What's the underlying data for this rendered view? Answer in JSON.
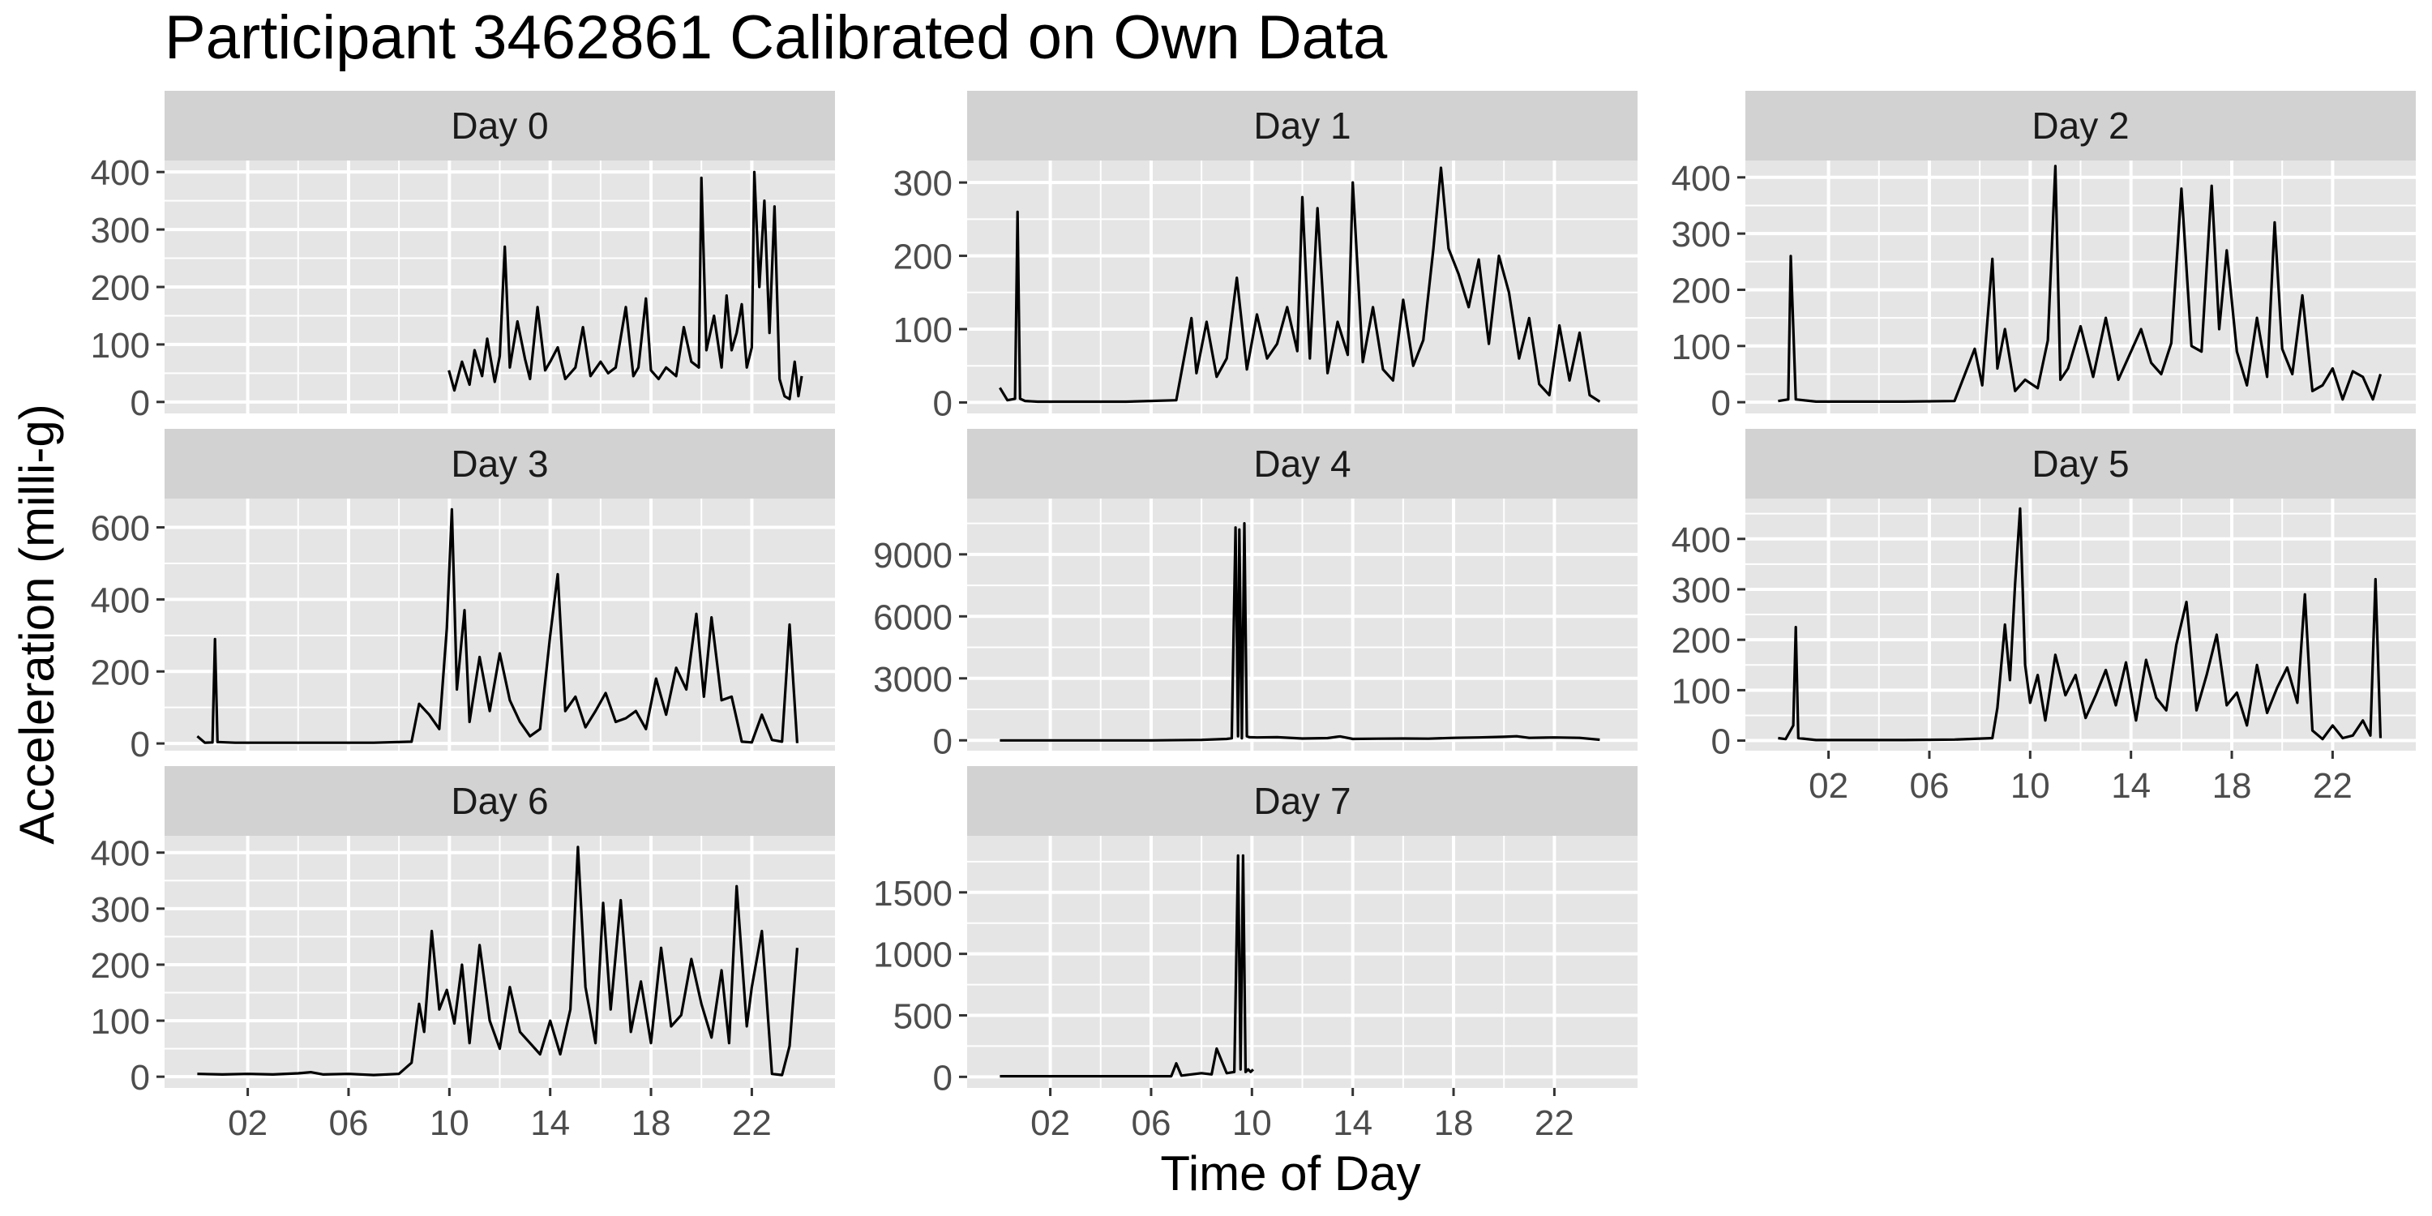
{
  "chart_data": {
    "type": "line",
    "title": "Participant 3462861 Calibrated on Own Data",
    "xlabel": "Time of Day",
    "ylabel": "Acceleration (milli-g)",
    "x_tick_labels": [
      "02",
      "06",
      "10",
      "14",
      "18",
      "22"
    ],
    "x_ticks": [
      2,
      6,
      10,
      14,
      18,
      22
    ],
    "xlim": [
      -1.3,
      25.3
    ],
    "grid": true,
    "colors": {
      "panel_bg": "#e5e5e5",
      "strip_bg": "#d2d2d2",
      "grid": "#ffffff",
      "line": "#000000",
      "text": "#000000",
      "tick_text": "#4d4d4d"
    },
    "facets": [
      {
        "name": "Day 0",
        "ylim": [
          -20,
          420
        ],
        "y_ticks": [
          0,
          100,
          200,
          300,
          400
        ],
        "x": [
          9.98,
          10.2,
          10.5,
          10.8,
          11,
          11.3,
          11.5,
          11.8,
          12,
          12.2,
          12.4,
          12.7,
          13,
          13.2,
          13.5,
          13.8,
          14,
          14.3,
          14.6,
          15,
          15.3,
          15.6,
          16,
          16.3,
          16.6,
          17,
          17.3,
          17.5,
          17.8,
          18,
          18.3,
          18.6,
          19,
          19.3,
          19.6,
          19.9,
          20,
          20.2,
          20.5,
          20.8,
          21,
          21.2,
          21.4,
          21.6,
          21.8,
          22,
          22.1,
          22.3,
          22.5,
          22.7,
          22.9,
          23.1,
          23.3,
          23.5,
          23.7,
          23.85,
          23.98
        ],
        "values": [
          55,
          20,
          70,
          30,
          90,
          45,
          110,
          35,
          80,
          270,
          60,
          140,
          75,
          40,
          165,
          55,
          70,
          95,
          40,
          60,
          130,
          45,
          70,
          50,
          60,
          165,
          45,
          60,
          180,
          55,
          40,
          60,
          45,
          130,
          70,
          60,
          390,
          90,
          150,
          60,
          185,
          90,
          120,
          170,
          60,
          95,
          400,
          200,
          350,
          120,
          340,
          40,
          10,
          5,
          70,
          10,
          45
        ]
      },
      {
        "name": "Day 1",
        "ylim": [
          -15,
          330
        ],
        "y_ticks": [
          0,
          100,
          200,
          300
        ],
        "x": [
          0,
          0.3,
          0.6,
          0.7,
          0.8,
          1.0,
          1.5,
          3,
          5,
          7,
          7.6,
          7.8,
          8.2,
          8.6,
          9,
          9.4,
          9.8,
          10.2,
          10.6,
          11,
          11.4,
          11.8,
          12,
          12.3,
          12.6,
          13,
          13.4,
          13.8,
          14,
          14.4,
          14.8,
          15.2,
          15.6,
          16,
          16.4,
          16.8,
          17.2,
          17.5,
          17.8,
          18.2,
          18.6,
          19,
          19.4,
          19.8,
          20.2,
          20.6,
          21,
          21.4,
          21.8,
          22.2,
          22.6,
          23,
          23.4,
          23.8
        ],
        "values": [
          20,
          3,
          5,
          260,
          5,
          2,
          1,
          1,
          1,
          3,
          115,
          40,
          110,
          35,
          60,
          170,
          45,
          120,
          60,
          80,
          130,
          70,
          280,
          60,
          265,
          40,
          110,
          65,
          300,
          55,
          130,
          45,
          30,
          140,
          50,
          85,
          210,
          320,
          210,
          175,
          130,
          195,
          80,
          200,
          150,
          60,
          115,
          25,
          10,
          105,
          30,
          95,
          10,
          1
        ]
      },
      {
        "name": "Day 2",
        "ylim": [
          -20,
          430
        ],
        "y_ticks": [
          0,
          100,
          200,
          300,
          400
        ],
        "x": [
          0,
          0.4,
          0.5,
          0.7,
          1.5,
          3,
          5,
          7,
          7.8,
          8.1,
          8.5,
          8.7,
          9,
          9.4,
          9.8,
          10.3,
          10.7,
          11,
          11.2,
          11.5,
          12,
          12.5,
          13,
          13.5,
          14,
          14.4,
          14.8,
          15.2,
          15.6,
          16,
          16.4,
          16.8,
          17.2,
          17.5,
          17.8,
          18.2,
          18.6,
          19,
          19.4,
          19.7,
          20,
          20.4,
          20.8,
          21.2,
          21.6,
          22,
          22.4,
          22.8,
          23.2,
          23.6,
          23.9
        ],
        "values": [
          2,
          5,
          260,
          5,
          1,
          1,
          1,
          2,
          95,
          30,
          255,
          60,
          130,
          20,
          40,
          25,
          110,
          420,
          40,
          60,
          135,
          45,
          150,
          40,
          90,
          130,
          70,
          50,
          105,
          380,
          100,
          90,
          385,
          130,
          270,
          90,
          30,
          150,
          45,
          320,
          95,
          50,
          190,
          20,
          30,
          60,
          5,
          55,
          45,
          5,
          50
        ]
      },
      {
        "name": "Day 3",
        "ylim": [
          -20,
          680
        ],
        "y_ticks": [
          0,
          200,
          400,
          600
        ],
        "x": [
          0,
          0.3,
          0.6,
          0.7,
          0.8,
          1.5,
          3,
          5,
          7,
          8.5,
          8.8,
          9.2,
          9.6,
          9.9,
          10.1,
          10.3,
          10.6,
          10.8,
          11.2,
          11.6,
          12,
          12.4,
          12.8,
          13.2,
          13.6,
          14,
          14.3,
          14.6,
          15,
          15.4,
          15.8,
          16.2,
          16.6,
          17,
          17.4,
          17.8,
          18.2,
          18.6,
          19,
          19.4,
          19.8,
          20.1,
          20.4,
          20.8,
          21.2,
          21.6,
          22,
          22.4,
          22.8,
          23.2,
          23.5,
          23.8
        ],
        "values": [
          20,
          2,
          3,
          290,
          4,
          2,
          2,
          2,
          2,
          5,
          110,
          80,
          40,
          320,
          650,
          150,
          370,
          60,
          240,
          90,
          250,
          120,
          60,
          20,
          40,
          300,
          470,
          90,
          130,
          45,
          90,
          140,
          60,
          70,
          90,
          40,
          180,
          80,
          210,
          150,
          360,
          130,
          350,
          120,
          130,
          5,
          3,
          80,
          10,
          5,
          330,
          1
        ]
      },
      {
        "name": "Day 4",
        "ylim": [
          -500,
          11700
        ],
        "y_ticks": [
          0,
          3000,
          6000,
          9000
        ],
        "x": [
          0,
          3,
          6,
          8,
          9,
          9.2,
          9.35,
          9.45,
          9.5,
          9.6,
          9.7,
          9.8,
          9.9,
          10.2,
          11,
          12,
          13,
          13.5,
          14,
          15,
          16,
          17,
          18,
          19,
          20,
          20.5,
          21,
          22,
          23,
          23.8
        ],
        "values": [
          0,
          0,
          0,
          20,
          70,
          100,
          10300,
          200,
          10200,
          100,
          10500,
          200,
          150,
          140,
          150,
          90,
          110,
          190,
          70,
          80,
          90,
          80,
          120,
          140,
          170,
          200,
          120,
          140,
          120,
          30
        ]
      },
      {
        "name": "Day 5",
        "ylim": [
          -20,
          480
        ],
        "y_ticks": [
          0,
          100,
          200,
          300,
          400
        ],
        "x": [
          0,
          0.3,
          0.6,
          0.7,
          0.8,
          1.5,
          3,
          5,
          7,
          8.5,
          8.7,
          9,
          9.2,
          9.4,
          9.6,
          9.8,
          10,
          10.3,
          10.6,
          11,
          11.4,
          11.8,
          12.2,
          12.6,
          13,
          13.4,
          13.8,
          14.2,
          14.6,
          15,
          15.4,
          15.8,
          16.2,
          16.6,
          17,
          17.4,
          17.8,
          18.2,
          18.6,
          19,
          19.4,
          19.8,
          20.2,
          20.6,
          20.9,
          21.2,
          21.6,
          22,
          22.4,
          22.8,
          23.2,
          23.5,
          23.7,
          23.9
        ],
        "values": [
          5,
          3,
          30,
          225,
          5,
          1,
          1,
          1,
          2,
          5,
          65,
          230,
          120,
          310,
          460,
          150,
          75,
          130,
          40,
          170,
          90,
          130,
          45,
          90,
          140,
          70,
          155,
          40,
          160,
          85,
          60,
          190,
          275,
          60,
          130,
          210,
          70,
          95,
          30,
          150,
          55,
          105,
          145,
          75,
          290,
          20,
          3,
          30,
          5,
          10,
          40,
          10,
          320,
          5
        ]
      },
      {
        "name": "Day 6",
        "ylim": [
          -20,
          430
        ],
        "y_ticks": [
          0,
          100,
          200,
          300,
          400
        ],
        "x": [
          0,
          1,
          2,
          3,
          4,
          4.5,
          5,
          6,
          7,
          8,
          8.5,
          8.8,
          9,
          9.3,
          9.6,
          9.9,
          10.2,
          10.5,
          10.8,
          11.2,
          11.6,
          12,
          12.4,
          12.8,
          13.2,
          13.6,
          14,
          14.4,
          14.8,
          15.1,
          15.4,
          15.8,
          16.1,
          16.4,
          16.8,
          17.2,
          17.6,
          18,
          18.4,
          18.8,
          19.2,
          19.6,
          20,
          20.4,
          20.8,
          21.1,
          21.4,
          21.8,
          22,
          22.4,
          22.8,
          23.2,
          23.5,
          23.8
        ],
        "values": [
          5,
          4,
          5,
          4,
          6,
          8,
          4,
          5,
          3,
          5,
          25,
          130,
          80,
          260,
          120,
          155,
          95,
          200,
          60,
          235,
          100,
          50,
          160,
          80,
          60,
          40,
          100,
          40,
          120,
          410,
          160,
          60,
          310,
          120,
          315,
          80,
          170,
          60,
          230,
          90,
          110,
          210,
          130,
          70,
          190,
          60,
          340,
          90,
          160,
          260,
          5,
          3,
          55,
          230
        ]
      },
      {
        "name": "Day 7",
        "ylim": [
          -90,
          1960
        ],
        "y_ticks": [
          0,
          500,
          1000,
          1500
        ],
        "x": [
          0,
          1,
          2,
          3,
          4,
          5,
          6,
          6.8,
          7,
          7.2,
          8,
          8.4,
          8.6,
          9,
          9.3,
          9.45,
          9.55,
          9.65,
          9.75,
          9.85,
          9.95,
          10.05
        ],
        "values": [
          5,
          5,
          5,
          5,
          5,
          5,
          5,
          5,
          110,
          10,
          30,
          20,
          230,
          30,
          40,
          1800,
          60,
          1800,
          40,
          60,
          40,
          60
        ]
      }
    ]
  }
}
